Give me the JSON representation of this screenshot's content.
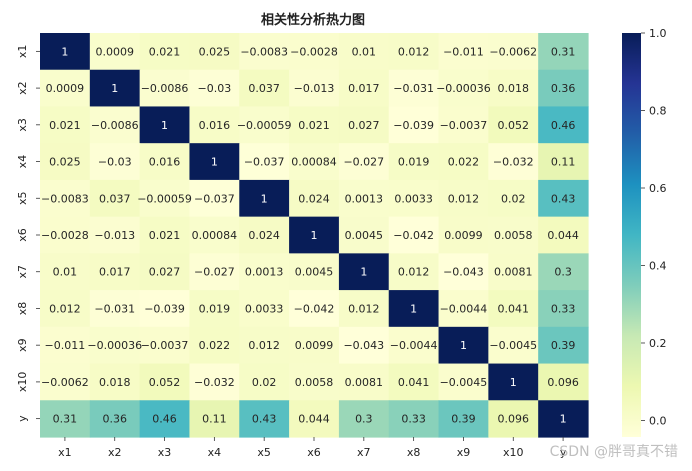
{
  "watermark": "CSDN @胖哥真不错",
  "chart_data": {
    "type": "heatmap",
    "title": "相关性分析热力图",
    "x_labels": [
      "x1",
      "x2",
      "x3",
      "x4",
      "x5",
      "x6",
      "x7",
      "x8",
      "x9",
      "x10",
      "y"
    ],
    "y_labels": [
      "x1",
      "x2",
      "x3",
      "x4",
      "x5",
      "x6",
      "x7",
      "x8",
      "x9",
      "x10",
      "y"
    ],
    "values": [
      [
        1,
        0.0009,
        0.021,
        0.025,
        -0.0083,
        -0.0028,
        0.01,
        0.012,
        -0.011,
        -0.0062,
        0.31
      ],
      [
        0.0009,
        1,
        -0.0086,
        -0.03,
        0.037,
        -0.013,
        0.017,
        -0.031,
        -0.00036,
        0.018,
        0.36
      ],
      [
        0.021,
        -0.0086,
        1,
        0.016,
        -0.00059,
        0.021,
        0.027,
        -0.039,
        -0.0037,
        0.052,
        0.46
      ],
      [
        0.025,
        -0.03,
        0.016,
        1,
        -0.037,
        0.00084,
        -0.027,
        0.019,
        0.022,
        -0.032,
        0.11
      ],
      [
        -0.0083,
        0.037,
        -0.00059,
        -0.037,
        1,
        0.024,
        0.0013,
        0.0033,
        0.012,
        0.02,
        0.43
      ],
      [
        -0.0028,
        -0.013,
        0.021,
        0.00084,
        0.024,
        1,
        0.0045,
        -0.042,
        0.0099,
        0.0058,
        0.044
      ],
      [
        0.01,
        0.017,
        0.027,
        -0.027,
        0.0013,
        0.0045,
        1,
        0.012,
        -0.043,
        0.0081,
        0.3
      ],
      [
        0.012,
        -0.031,
        -0.039,
        0.019,
        0.0033,
        -0.042,
        0.012,
        1,
        -0.0044,
        0.041,
        0.33
      ],
      [
        -0.011,
        -0.00036,
        -0.0037,
        0.022,
        0.012,
        0.0099,
        -0.043,
        -0.0044,
        1,
        -0.0045,
        0.39
      ],
      [
        -0.0062,
        0.018,
        0.052,
        -0.032,
        0.02,
        0.0058,
        0.0081,
        0.041,
        -0.0045,
        1,
        0.096
      ],
      [
        0.31,
        0.36,
        0.46,
        0.11,
        0.43,
        0.044,
        0.3,
        0.33,
        0.39,
        0.096,
        1
      ]
    ],
    "colorbar": {
      "colormap": "YlGnBu",
      "range": [
        -0.0426,
        1.0
      ],
      "ticks": [
        0.0,
        0.2,
        0.4,
        0.6,
        0.8,
        1.0
      ],
      "tick_labels": [
        "0.0",
        "0.2",
        "0.4",
        "0.6",
        "0.8",
        "1.0"
      ]
    },
    "annotations": true
  }
}
